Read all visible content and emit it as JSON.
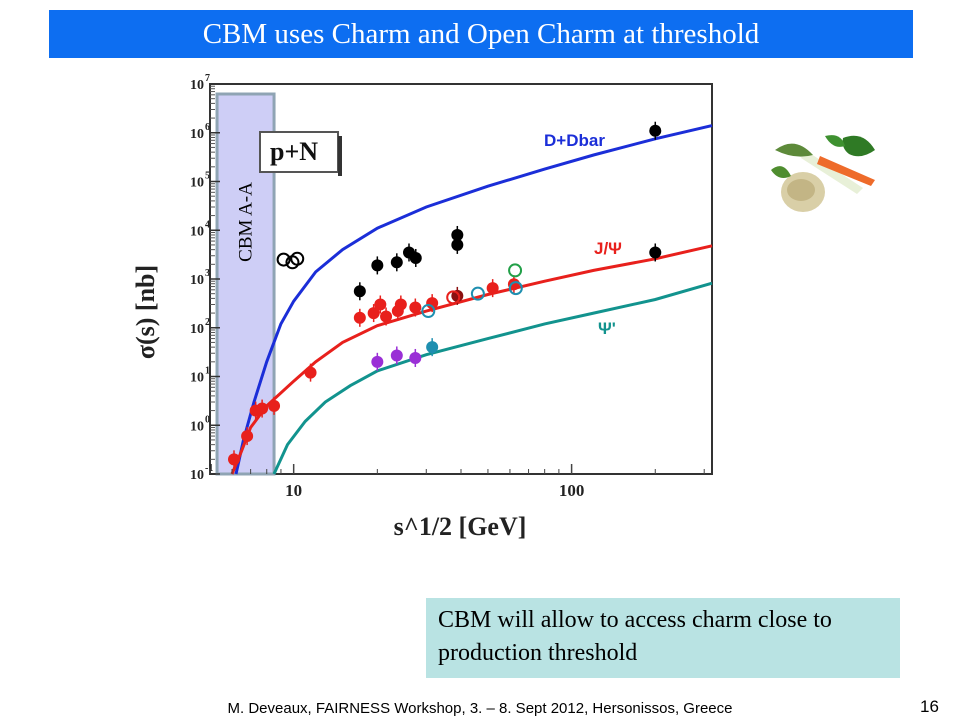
{
  "slide": {
    "title": "CBM uses Charm and Open Charm at threshold",
    "note": "CBM will allow to access charm close to production threshold",
    "footer": "M. Deveaux, FAIRNESS Workshop, 3. – 8. Sept 2012, Hersonissos, Greece",
    "page_number": "16",
    "image": "vegetables-image"
  },
  "colors": {
    "title_bar": "#0d6ef1",
    "note_box": "#b9e3e3",
    "band": "#c6c6f5",
    "band_edge": "#8fa4b4"
  },
  "chart_data": {
    "type": "scatter",
    "xscale": "log",
    "yscale": "log",
    "xlabel": "s^1/2 [GeV]",
    "ylabel": "σ(s) [nb]",
    "xlim": [
      5,
      320
    ],
    "ylim": [
      0.1,
      10000000
    ],
    "x_ticks": [
      {
        "v": 10,
        "label": "10"
      },
      {
        "v": 100,
        "label": "100"
      }
    ],
    "y_ticks": [
      {
        "v": 0.1,
        "label": "10",
        "exp": "-1"
      },
      {
        "v": 1,
        "label": "10",
        "exp": "0"
      },
      {
        "v": 10,
        "label": "10",
        "exp": "1"
      },
      {
        "v": 100,
        "label": "10",
        "exp": "2"
      },
      {
        "v": 1000,
        "label": "10",
        "exp": "3"
      },
      {
        "v": 10000,
        "label": "10",
        "exp": "4"
      },
      {
        "v": 100000,
        "label": "10",
        "exp": "5"
      },
      {
        "v": 1000000,
        "label": "10",
        "exp": "6"
      },
      {
        "v": 10000000,
        "label": "10",
        "exp": "7"
      }
    ],
    "system_label": "p+N",
    "band": {
      "label": "CBM A-A",
      "x_range": [
        5.3,
        8.5
      ]
    },
    "series": [
      {
        "name": "D+Dbar",
        "color": "#1b2ed8",
        "curve": [
          [
            6.2,
            0.1
          ],
          [
            6.6,
            0.5
          ],
          [
            7.2,
            3
          ],
          [
            8,
            20
          ],
          [
            9,
            120
          ],
          [
            10,
            350
          ],
          [
            12,
            1400
          ],
          [
            15,
            4000
          ],
          [
            20,
            11000
          ],
          [
            30,
            30000
          ],
          [
            50,
            80000
          ],
          [
            80,
            180000
          ],
          [
            120,
            350000
          ],
          [
            200,
            750000
          ],
          [
            320,
            1400000
          ]
        ],
        "points": [
          {
            "x": 17.3,
            "y": 560,
            "c": "#000000"
          },
          {
            "x": 20,
            "y": 1900,
            "c": "#000000"
          },
          {
            "x": 23.5,
            "y": 2200,
            "c": "#000000"
          },
          {
            "x": 26,
            "y": 3500,
            "c": "#000000"
          },
          {
            "x": 27.5,
            "y": 2700,
            "c": "#000000"
          },
          {
            "x": 38.8,
            "y": 8000,
            "c": "#000000"
          },
          {
            "x": 38.8,
            "y": 5000,
            "c": "#000000"
          },
          {
            "x": 200,
            "y": 1100000,
            "c": "#000000"
          },
          {
            "x": 200,
            "y": 3500,
            "c": "#000000"
          }
        ]
      },
      {
        "name": "J/Ψ",
        "color": "#e8201c",
        "curve": [
          [
            6.0,
            0.1
          ],
          [
            6.5,
            0.3
          ],
          [
            7,
            0.9
          ],
          [
            8,
            2.5
          ],
          [
            10,
            8
          ],
          [
            12,
            20
          ],
          [
            15,
            50
          ],
          [
            20,
            110
          ],
          [
            30,
            220
          ],
          [
            50,
            480
          ],
          [
            80,
            900
          ],
          [
            120,
            1500
          ],
          [
            200,
            2600
          ],
          [
            320,
            4800
          ]
        ],
        "points": [
          {
            "x": 6.1,
            "y": 0.2,
            "c": "#e8201c"
          },
          {
            "x": 6.8,
            "y": 0.6,
            "c": "#e8201c"
          },
          {
            "x": 7.3,
            "y": 2,
            "c": "#e8201c"
          },
          {
            "x": 7.7,
            "y": 2.2,
            "c": "#e8201c"
          },
          {
            "x": 8.5,
            "y": 2.5,
            "c": "#e8201c"
          },
          {
            "x": 11.5,
            "y": 12,
            "c": "#e8201c"
          },
          {
            "x": 17.3,
            "y": 160,
            "c": "#e8201c"
          },
          {
            "x": 19.4,
            "y": 200,
            "c": "#e8201c"
          },
          {
            "x": 20.5,
            "y": 300,
            "c": "#e8201c"
          },
          {
            "x": 21.5,
            "y": 170,
            "c": "#e8201c"
          },
          {
            "x": 23.7,
            "y": 220,
            "c": "#e8201c"
          },
          {
            "x": 24.3,
            "y": 300,
            "c": "#e8201c"
          },
          {
            "x": 27.4,
            "y": 260,
            "c": "#e8201c"
          },
          {
            "x": 31.5,
            "y": 320,
            "c": "#e8201c"
          },
          {
            "x": 52,
            "y": 650,
            "c": "#e8201c"
          },
          {
            "x": 62,
            "y": 780,
            "c": "#e8201c"
          },
          {
            "x": 38.8,
            "y": 450,
            "c": "#8b1010"
          }
        ]
      },
      {
        "name": "Ψ'",
        "color": "#12938e",
        "curve": [
          [
            8.5,
            0.1
          ],
          [
            9.5,
            0.4
          ],
          [
            11,
            1.2
          ],
          [
            13,
            3
          ],
          [
            16,
            6.5
          ],
          [
            20,
            13
          ],
          [
            30,
            28
          ],
          [
            50,
            60
          ],
          [
            80,
            120
          ],
          [
            120,
            200
          ],
          [
            200,
            380
          ],
          [
            320,
            820
          ]
        ],
        "points": [
          {
            "x": 20,
            "y": 20,
            "c": "#9a2fd6"
          },
          {
            "x": 23.5,
            "y": 27,
            "c": "#9a2fd6"
          },
          {
            "x": 27.4,
            "y": 24,
            "c": "#9a2fd6"
          },
          {
            "x": 31.5,
            "y": 40,
            "c": "#1e8fb0"
          }
        ]
      }
    ]
  }
}
